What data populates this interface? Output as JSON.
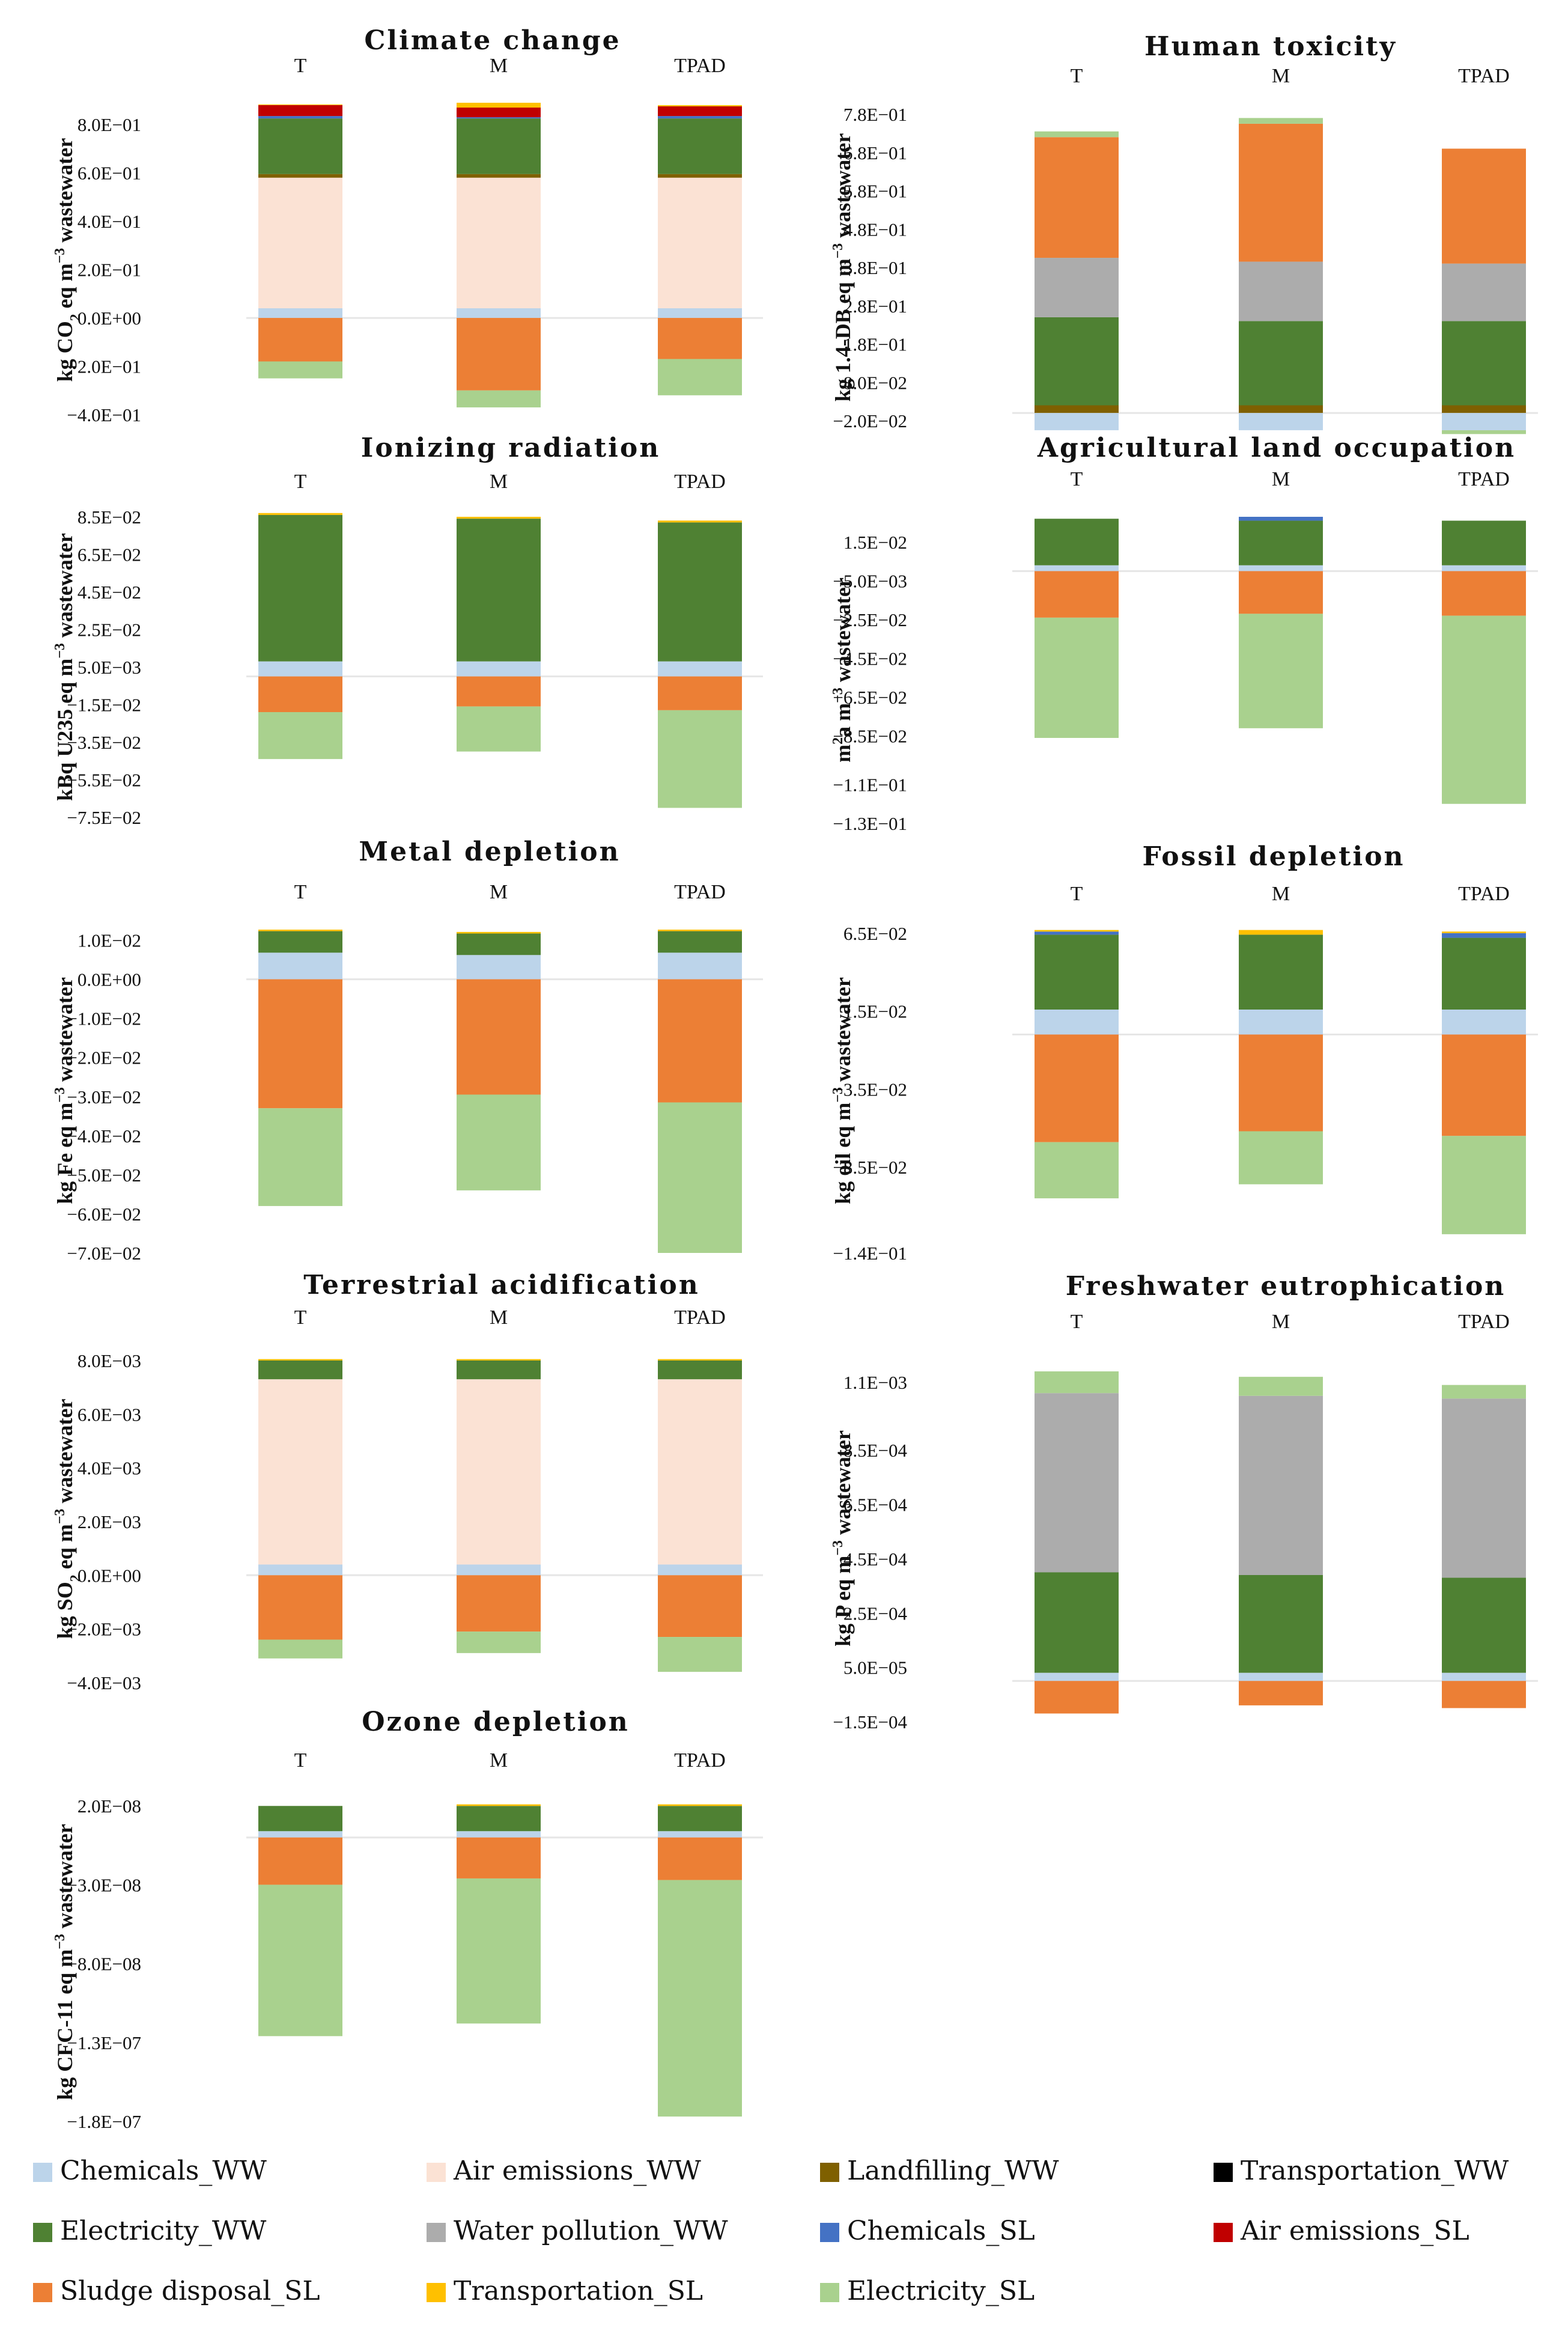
{
  "legend": [
    {
      "key": "chem_ww",
      "label": "Chemicals_WW",
      "color": "#bcd4ea"
    },
    {
      "key": "air_ww",
      "label": "Air emissions_WW",
      "color": "#fbe2d4"
    },
    {
      "key": "land_ww",
      "label": "Landfilling_WW",
      "color": "#7f6000"
    },
    {
      "key": "trans_ww",
      "label": "Transportation_WW",
      "color": "#000000"
    },
    {
      "key": "elec_ww",
      "label": "Electricity_WW",
      "color": "#4f8133"
    },
    {
      "key": "water_ww",
      "label": "Water pollution_WW",
      "color": "#acacac"
    },
    {
      "key": "chem_sl",
      "label": "Chemicals_SL",
      "color": "#4472c4"
    },
    {
      "key": "air_sl",
      "label": "Air emissions_SL",
      "color": "#c00000"
    },
    {
      "key": "sludge_sl",
      "label": "Sludge disposal_SL",
      "color": "#ec7f35"
    },
    {
      "key": "trans_sl",
      "label": "Transportation_SL",
      "color": "#ffc000"
    },
    {
      "key": "elec_sl",
      "label": "Electricity_SL",
      "color": "#a9d18e"
    }
  ],
  "chart_data": [
    {
      "type": "bar",
      "stacked": true,
      "title": "Climate change",
      "ylabel_parts": [
        [
          "kg CO",
          ""
        ],
        [
          "2",
          "sub"
        ],
        [
          " eq m",
          ""
        ],
        [
          "−3",
          "sup"
        ],
        [
          " wastewater",
          ""
        ]
      ],
      "categories": [
        "T",
        "M",
        "TPAD"
      ],
      "ylim": [
        -0.4,
        0.88
      ],
      "yticks": [
        0.8,
        0.6,
        0.4,
        0.2,
        0.0,
        -0.2,
        -0.4
      ],
      "ytick_labels": [
        "8.0E−01",
        "6.0E−01",
        "4.0E−01",
        "2.0E−01",
        "0.0E+00",
        "−2.0E−01",
        "−4.0E−01"
      ],
      "positive": [
        {
          "key": "chem_ww",
          "values": [
            0.04,
            0.04,
            0.04
          ]
        },
        {
          "key": "air_ww",
          "values": [
            0.54,
            0.54,
            0.54
          ]
        },
        {
          "key": "land_ww",
          "values": [
            0.015,
            0.015,
            0.015
          ]
        },
        {
          "key": "elec_ww",
          "values": [
            0.23,
            0.23,
            0.23
          ]
        },
        {
          "key": "chem_sl",
          "values": [
            0.01,
            0.005,
            0.01
          ]
        },
        {
          "key": "air_sl",
          "values": [
            0.045,
            0.04,
            0.04
          ]
        },
        {
          "key": "trans_sl",
          "values": [
            0.003,
            0.02,
            0.005
          ]
        }
      ],
      "negative": [
        {
          "key": "sludge_sl",
          "values": [
            -0.18,
            -0.3,
            -0.17
          ]
        },
        {
          "key": "elec_sl",
          "values": [
            -0.07,
            -0.07,
            -0.15
          ]
        }
      ]
    },
    {
      "type": "bar",
      "stacked": true,
      "title": "Human toxicity",
      "ylabel_parts": [
        [
          "kg 1.4-DB eq m",
          ""
        ],
        [
          "−3",
          "sup"
        ],
        [
          " wastewater",
          ""
        ]
      ],
      "categories": [
        "T",
        "M",
        "TPAD"
      ],
      "ylim": [
        -0.02,
        0.78
      ],
      "yticks": [
        0.78,
        0.68,
        0.58,
        0.48,
        0.38,
        0.28,
        0.18,
        0.08,
        -0.02
      ],
      "ytick_labels": [
        "7.8E−01",
        "6.8E−01",
        "5.8E−01",
        "4.8E−01",
        "3.8E−01",
        "2.8E−01",
        "1.8E−01",
        "8.0E−02",
        "−2.0E−02"
      ],
      "positive": [
        {
          "key": "land_ww",
          "values": [
            0.02,
            0.02,
            0.02
          ]
        },
        {
          "key": "elec_ww",
          "values": [
            0.23,
            0.22,
            0.22
          ]
        },
        {
          "key": "water_ww",
          "values": [
            0.155,
            0.155,
            0.15
          ]
        },
        {
          "key": "sludge_sl",
          "values": [
            0.315,
            0.36,
            0.3
          ]
        },
        {
          "key": "elec_sl",
          "values": [
            0.015,
            0.015,
            0.0
          ]
        }
      ],
      "negative": [
        {
          "key": "chem_ww",
          "values": [
            -0.045,
            -0.045,
            -0.045
          ]
        },
        {
          "key": "elec_sl",
          "values": [
            0.0,
            0.0,
            -0.01
          ]
        }
      ]
    },
    {
      "type": "bar",
      "stacked": true,
      "title": "Ionizing radiation",
      "ylabel_parts": [
        [
          "kBq U235 eq m",
          ""
        ],
        [
          "−3",
          "sup"
        ],
        [
          " wastewater",
          ""
        ]
      ],
      "categories": [
        "T",
        "M",
        "TPAD"
      ],
      "ylim": [
        -0.075,
        0.085
      ],
      "yticks": [
        0.085,
        0.065,
        0.045,
        0.025,
        0.005,
        -0.015,
        -0.035,
        -0.055,
        -0.075
      ],
      "ytick_labels": [
        "8.5E−02",
        "6.5E−02",
        "4.5E−02",
        "2.5E−02",
        "5.0E−03",
        "−1.5E−02",
        "−3.5E−02",
        "−5.5E−02",
        "−7.5E−02"
      ],
      "positive": [
        {
          "key": "chem_ww",
          "values": [
            0.008,
            0.008,
            0.008
          ]
        },
        {
          "key": "elec_ww",
          "values": [
            0.078,
            0.076,
            0.074
          ]
        },
        {
          "key": "trans_sl",
          "values": [
            0.001,
            0.001,
            0.001
          ]
        }
      ],
      "negative": [
        {
          "key": "sludge_sl",
          "values": [
            -0.019,
            -0.016,
            -0.018
          ]
        },
        {
          "key": "elec_sl",
          "values": [
            -0.025,
            -0.024,
            -0.052
          ]
        }
      ]
    },
    {
      "type": "bar",
      "stacked": true,
      "title": "Agricultural land occupation",
      "ylabel_parts": [
        [
          "m",
          ""
        ],
        [
          "2",
          "sup"
        ],
        [
          "a m",
          ""
        ],
        [
          "−3",
          "sup"
        ],
        [
          " wastewater",
          ""
        ]
      ],
      "categories": [
        "T",
        "M",
        "TPAD"
      ],
      "ylim": [
        -0.13,
        0.028
      ],
      "yticks": [
        0.015,
        -0.005,
        -0.025,
        -0.045,
        -0.065,
        -0.085,
        -0.11,
        -0.13
      ],
      "ytick_labels": [
        "1.5E−02",
        "−5.0E−03",
        "−2.5E−02",
        "−4.5E−02",
        "−6.5E−02",
        "−8.5E−02",
        "−1.1E−01",
        "−1.3E−01"
      ],
      "positive": [
        {
          "key": "chem_ww",
          "values": [
            0.003,
            0.003,
            0.003
          ]
        },
        {
          "key": "elec_ww",
          "values": [
            0.024,
            0.023,
            0.023
          ]
        },
        {
          "key": "chem_sl",
          "values": [
            0.0,
            0.002,
            0.0
          ]
        }
      ],
      "negative": [
        {
          "key": "sludge_sl",
          "values": [
            -0.024,
            -0.022,
            -0.023
          ]
        },
        {
          "key": "elec_sl",
          "values": [
            -0.062,
            -0.059,
            -0.097
          ]
        }
      ]
    },
    {
      "type": "bar",
      "stacked": true,
      "title": "Metal depletion",
      "ylabel_parts": [
        [
          "kg Fe eq m",
          ""
        ],
        [
          "−3",
          "sup"
        ],
        [
          " wastewater",
          ""
        ]
      ],
      "categories": [
        "T",
        "M",
        "TPAD"
      ],
      "ylim": [
        -0.07,
        0.013
      ],
      "yticks": [
        0.01,
        0.0,
        -0.01,
        -0.02,
        -0.03,
        -0.04,
        -0.05,
        -0.06,
        -0.07
      ],
      "ytick_labels": [
        "1.0E−02",
        "0.0E+00",
        "−1.0E−02",
        "−2.0E−02",
        "−3.0E−02",
        "−4.0E−02",
        "−5.0E−02",
        "−6.0E−02",
        "−7.0E−02"
      ],
      "positive": [
        {
          "key": "chem_ww",
          "values": [
            0.0068,
            0.0062,
            0.0068
          ]
        },
        {
          "key": "elec_ww",
          "values": [
            0.0055,
            0.0055,
            0.0055
          ]
        },
        {
          "key": "trans_sl",
          "values": [
            0.0004,
            0.0004,
            0.0004
          ]
        }
      ],
      "negative": [
        {
          "key": "sludge_sl",
          "values": [
            -0.033,
            -0.0295,
            -0.0315
          ]
        },
        {
          "key": "elec_sl",
          "values": [
            -0.025,
            -0.0245,
            -0.0385
          ]
        }
      ]
    },
    {
      "type": "bar",
      "stacked": true,
      "title": "Fossil depletion",
      "ylabel_parts": [
        [
          "kg oil eq m",
          ""
        ],
        [
          "−3",
          "sup"
        ],
        [
          " wastewater",
          ""
        ]
      ],
      "categories": [
        "T",
        "M",
        "TPAD"
      ],
      "ylim": [
        -0.14,
        0.068
      ],
      "yticks": [
        0.065,
        0.015,
        -0.035,
        -0.085,
        -0.14
      ],
      "ytick_labels": [
        "6.5E−02",
        "1.5E−02",
        "−3.5E−02",
        "−8.5E−02",
        "−1.4E−01"
      ],
      "positive": [
        {
          "key": "chem_ww",
          "values": [
            0.016,
            0.016,
            0.016
          ]
        },
        {
          "key": "elec_ww",
          "values": [
            0.048,
            0.048,
            0.046
          ]
        },
        {
          "key": "chem_sl",
          "values": [
            0.002,
            0.0,
            0.003
          ]
        },
        {
          "key": "trans_sl",
          "values": [
            0.001,
            0.003,
            0.001
          ]
        }
      ],
      "negative": [
        {
          "key": "sludge_sl",
          "values": [
            -0.069,
            -0.062,
            -0.065
          ]
        },
        {
          "key": "elec_sl",
          "values": [
            -0.036,
            -0.034,
            -0.063
          ]
        }
      ]
    },
    {
      "type": "bar",
      "stacked": true,
      "title": "Terrestrial acidification",
      "ylabel_parts": [
        [
          "kg SO",
          ""
        ],
        [
          "2",
          "sub"
        ],
        [
          " eq m",
          ""
        ],
        [
          "−3",
          "sup"
        ],
        [
          " wastewater",
          ""
        ]
      ],
      "categories": [
        "T",
        "M",
        "TPAD"
      ],
      "ylim": [
        -0.004,
        0.0082
      ],
      "yticks": [
        0.008,
        0.006,
        0.004,
        0.002,
        0.0,
        -0.002,
        -0.004
      ],
      "ytick_labels": [
        "8.0E−03",
        "6.0E−03",
        "4.0E−03",
        "2.0E−03",
        "0.0E+00",
        "−2.0E−03",
        "−4.0E−03"
      ],
      "positive": [
        {
          "key": "chem_ww",
          "values": [
            0.0004,
            0.0004,
            0.0004
          ]
        },
        {
          "key": "air_ww",
          "values": [
            0.0069,
            0.0069,
            0.0069
          ]
        },
        {
          "key": "elec_ww",
          "values": [
            0.0007,
            0.0007,
            0.0007
          ]
        },
        {
          "key": "trans_sl",
          "values": [
            5e-05,
            5e-05,
            5e-05
          ]
        }
      ],
      "negative": [
        {
          "key": "sludge_sl",
          "values": [
            -0.0024,
            -0.0021,
            -0.0023
          ]
        },
        {
          "key": "elec_sl",
          "values": [
            -0.0007,
            -0.0008,
            -0.0013
          ]
        }
      ]
    },
    {
      "type": "bar",
      "stacked": true,
      "title": "Freshwater eutrophication",
      "ylabel_parts": [
        [
          "kg P eq m",
          ""
        ],
        [
          "−3",
          "sup"
        ],
        [
          " wastewater",
          ""
        ]
      ],
      "categories": [
        "T",
        "M",
        "TPAD"
      ],
      "ylim": [
        -0.00015,
        0.0012
      ],
      "yticks": [
        0.0011,
        0.00085,
        0.00065,
        0.00045,
        0.00025,
        5e-05,
        -0.00015
      ],
      "ytick_labels": [
        "1.1E−03",
        "8.5E−04",
        "6.5E−04",
        "4.5E−04",
        "2.5E−04",
        "5.0E−05",
        "−1.5E−04"
      ],
      "positive": [
        {
          "key": "chem_ww",
          "values": [
            3e-05,
            3e-05,
            3e-05
          ]
        },
        {
          "key": "elec_ww",
          "values": [
            0.00037,
            0.00036,
            0.00035
          ]
        },
        {
          "key": "water_ww",
          "values": [
            0.00066,
            0.00066,
            0.00066
          ]
        },
        {
          "key": "elec_sl",
          "values": [
            8e-05,
            7e-05,
            5e-05
          ]
        }
      ],
      "negative": [
        {
          "key": "sludge_sl",
          "values": [
            -0.00012,
            -9e-05,
            -0.0001
          ]
        }
      ]
    },
    {
      "type": "bar",
      "stacked": true,
      "title": "Ozone depletion",
      "ylabel_parts": [
        [
          "kg CFC-11 eq m",
          ""
        ],
        [
          "−3",
          "sup"
        ],
        [
          " wastewater",
          ""
        ]
      ],
      "categories": [
        "T",
        "M",
        "TPAD"
      ],
      "ylim": [
        -1.8e-07,
        2.2e-08
      ],
      "yticks": [
        2e-08,
        -3e-08,
        -8e-08,
        -1.3e-07,
        -1.8e-07
      ],
      "ytick_labels": [
        "2.0E−08",
        "−3.0E−08",
        "−8.0E−08",
        "−1.3E−07",
        "−1.8E−07"
      ],
      "positive": [
        {
          "key": "chem_ww",
          "values": [
            4e-09,
            4e-09,
            4e-09
          ]
        },
        {
          "key": "elec_ww",
          "values": [
            1.6e-08,
            1.6e-08,
            1.6e-08
          ]
        },
        {
          "key": "trans_sl",
          "values": [
            0.0,
            1e-09,
            1e-09
          ]
        }
      ],
      "negative": [
        {
          "key": "sludge_sl",
          "values": [
            -3e-08,
            -2.6e-08,
            -2.7e-08
          ]
        },
        {
          "key": "elec_sl",
          "values": [
            -9.6e-08,
            -9.2e-08,
            -1.5e-07
          ]
        }
      ]
    }
  ]
}
